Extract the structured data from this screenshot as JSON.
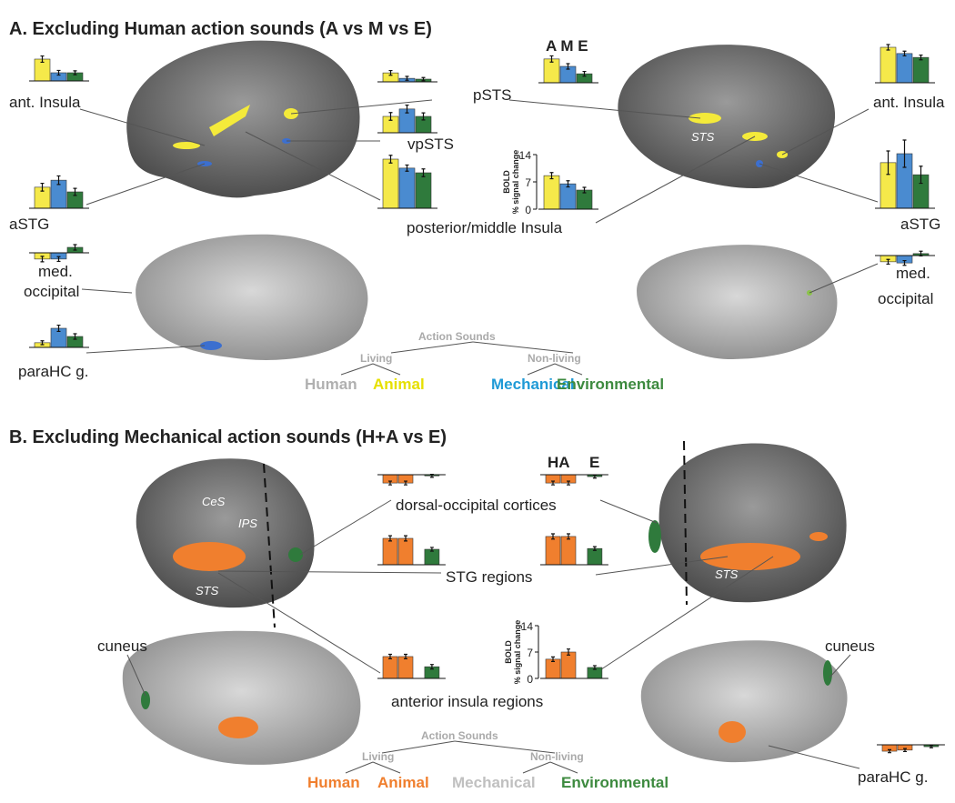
{
  "panels": [
    {
      "title": "A. Excluding Human action sounds (A vs M vs E)",
      "bar_colors": [
        "#f5e94a",
        "#4a8bd0",
        "#2f7a3c"
      ],
      "ylim": [
        0,
        14
      ],
      "yticks": [
        0,
        7,
        14
      ],
      "ylabel": [
        "BOLD",
        "% signal change"
      ],
      "header": "A M E",
      "labels": [
        "ant. Insula",
        "vpSTS",
        "aSTG",
        "med.",
        "occipital",
        "paraHC g.",
        "pSTS",
        "STS",
        "ant. Insula",
        "aSTG",
        "posterior/middle Insula",
        "med.",
        "occipital"
      ],
      "charts": [
        {
          "values": [
            5.6,
            2.1,
            2.1
          ],
          "errors": [
            0.8,
            0.6,
            0.5
          ]
        },
        {
          "values": [
            2.3,
            0.9,
            0.7
          ],
          "errors": [
            0.6,
            0.5,
            0.4
          ]
        },
        {
          "values": [
            4.2,
            6.1,
            4.2
          ],
          "errors": [
            1.0,
            1.0,
            0.9
          ]
        },
        {
          "values": [
            12.6,
            10.3,
            9.1
          ],
          "errors": [
            1.0,
            0.8,
            1.0
          ]
        },
        {
          "values": [
            5.4,
            7.2,
            4.2
          ],
          "errors": [
            1.0,
            1.1,
            0.9
          ]
        },
        {
          "values": [
            -1.6,
            -1.6,
            1.4
          ],
          "errors": [
            0.7,
            0.6,
            0.7
          ]
        },
        {
          "values": [
            1.2,
            4.9,
            2.8
          ],
          "errors": [
            0.5,
            0.8,
            0.7
          ]
        },
        {
          "values": [
            6.1,
            4.2,
            2.3
          ],
          "errors": [
            0.8,
            0.7,
            0.6
          ]
        },
        {
          "values": [
            8.6,
            6.5,
            4.9
          ],
          "errors": [
            0.8,
            0.8,
            0.7
          ],
          "axis": true
        },
        {
          "values": [
            9.1,
            7.5,
            6.5
          ],
          "errors": [
            0.7,
            0.6,
            0.6
          ]
        },
        {
          "values": [
            11.7,
            14.0,
            8.6
          ],
          "errors": [
            3.0,
            3.5,
            2.2
          ]
        },
        {
          "values": [
            -1.6,
            -1.9,
            0.5
          ],
          "errors": [
            0.6,
            0.6,
            0.6
          ]
        }
      ],
      "legend": {
        "root": "Action Sounds",
        "groups": [
          "Living",
          "Non-living"
        ],
        "items": [
          {
            "text": "Human",
            "color": "#b0b0b0"
          },
          {
            "text": "Animal",
            "color": "#e6e000"
          },
          {
            "text": "Mechanical",
            "color": "#1f9ad6"
          },
          {
            "text": "Environmental",
            "color": "#3d8a3f"
          }
        ]
      }
    },
    {
      "title": "B. Excluding Mechanical action sounds (H+A vs  E)",
      "bar_colors": [
        "#f07f2e",
        "#f07f2e",
        "#2f7a3c"
      ],
      "ylim": [
        0,
        14
      ],
      "yticks": [
        0,
        7,
        14
      ],
      "ylabel": [
        "BOLD",
        "% signal change"
      ],
      "header": [
        "HA",
        "E"
      ],
      "labels": [
        "CeS",
        "IPS",
        "STS",
        "STS",
        "dorsal-occipital cortices",
        "STG regions",
        "anterior insula regions",
        "cuneus",
        "cuneus",
        "paraHC g."
      ],
      "charts": [
        {
          "values": [
            -2.2,
            -2.2,
            -0.3
          ],
          "errors": [
            0.5,
            0.5,
            0.4
          ]
        },
        {
          "values": [
            -2.2,
            -2.2,
            -0.5
          ],
          "errors": [
            0.5,
            0.5,
            0.4
          ]
        },
        {
          "values": [
            7.0,
            7.0,
            4.1
          ],
          "errors": [
            0.7,
            0.7,
            0.5
          ]
        },
        {
          "values": [
            7.5,
            7.5,
            4.3
          ],
          "errors": [
            0.7,
            0.7,
            0.5
          ]
        },
        {
          "values": [
            5.8,
            5.8,
            3.1
          ],
          "errors": [
            0.6,
            0.6,
            0.6
          ]
        },
        {
          "values": [
            5.1,
            7.0,
            2.9
          ],
          "errors": [
            0.6,
            0.8,
            0.5
          ],
          "axis": true
        },
        {
          "values": [
            -1.7,
            -1.4,
            -0.5
          ],
          "errors": [
            0.4,
            0.4,
            0.3
          ]
        }
      ],
      "legend": {
        "root": "Action Sounds",
        "groups": [
          "Living",
          "Non-living"
        ],
        "items": [
          {
            "text": "Human",
            "color": "#f07f2e"
          },
          {
            "text": "Animal",
            "color": "#f07f2e"
          },
          {
            "text": "Mechanical",
            "color": "#c0c0c0"
          },
          {
            "text": "Environmental",
            "color": "#3d8a3f"
          }
        ]
      }
    }
  ]
}
